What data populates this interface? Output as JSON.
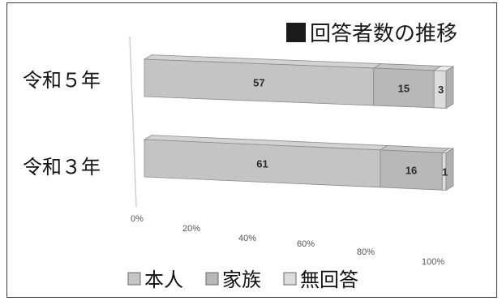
{
  "chart_data": {
    "type": "bar",
    "orientation": "horizontal",
    "stacked": true,
    "percent_axis": true,
    "title": "回答者数の推移",
    "title_marker": "■",
    "categories": [
      "令和５年",
      "令和３年"
    ],
    "series": [
      {
        "name": "本人",
        "values": [
          57,
          61
        ],
        "color": "#c4c4c4"
      },
      {
        "name": "家族",
        "values": [
          15,
          16
        ],
        "color": "#b8b8b8"
      },
      {
        "name": "無回答",
        "values": [
          3,
          1
        ],
        "color": "#dcdcdc"
      }
    ],
    "xlim": [
      0,
      100
    ],
    "xticks": [
      "0%",
      "20%",
      "40%",
      "60%",
      "80%",
      "100%"
    ],
    "legend_position": "bottom",
    "grid": false
  }
}
